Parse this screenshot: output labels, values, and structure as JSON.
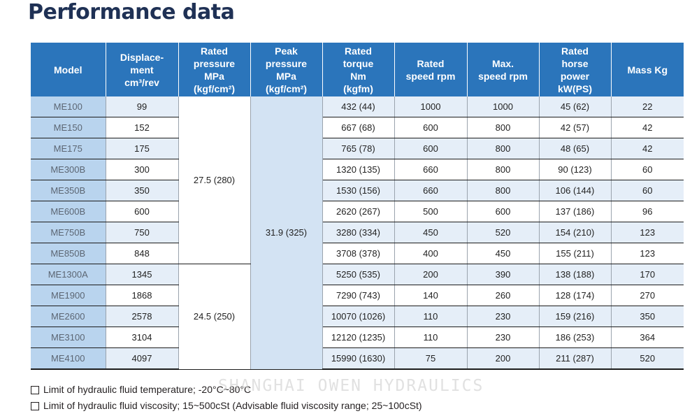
{
  "title": "Performance data",
  "headers": {
    "model": "Model",
    "displacement": [
      "Displace-",
      "ment",
      "cm³/rev"
    ],
    "rated_pressure": [
      "Rated",
      "pressure",
      "MPa",
      "(kgf/cm²)"
    ],
    "peak_pressure": [
      "Peak",
      "pressure",
      "MPa",
      "(kgf/cm²)"
    ],
    "rated_torque": [
      "Rated",
      "torque",
      "Nm",
      "(kgfm)"
    ],
    "rated_speed": [
      "Rated",
      "speed rpm"
    ],
    "max_speed": [
      "Max.",
      "speed rpm"
    ],
    "rated_power": [
      "Rated",
      "horse",
      "power",
      "kW(PS)"
    ],
    "mass": "Mass Kg"
  },
  "merged": {
    "rated_pressure_group1": "27.5 (280)",
    "rated_pressure_group2": "24.5 (250)",
    "peak_pressure_all": "31.9 (325)"
  },
  "rows": [
    {
      "model": "ME100",
      "displacement": "99",
      "torque": "432 (44)",
      "rated_speed": "1000",
      "max_speed": "1000",
      "power": "45 (62)",
      "mass": "22"
    },
    {
      "model": "ME150",
      "displacement": "152",
      "torque": "667 (68)",
      "rated_speed": "600",
      "max_speed": "800",
      "power": "42 (57)",
      "mass": "42"
    },
    {
      "model": "ME175",
      "displacement": "175",
      "torque": "765 (78)",
      "rated_speed": "600",
      "max_speed": "800",
      "power": "48 (65)",
      "mass": "42"
    },
    {
      "model": "ME300B",
      "displacement": "300",
      "torque": "1320 (135)",
      "rated_speed": "660",
      "max_speed": "800",
      "power": "90 (123)",
      "mass": "60"
    },
    {
      "model": "ME350B",
      "displacement": "350",
      "torque": "1530 (156)",
      "rated_speed": "660",
      "max_speed": "800",
      "power": "106 (144)",
      "mass": "60"
    },
    {
      "model": "ME600B",
      "displacement": "600",
      "torque": "2620 (267)",
      "rated_speed": "500",
      "max_speed": "600",
      "power": "137 (186)",
      "mass": "96"
    },
    {
      "model": "ME750B",
      "displacement": "750",
      "torque": "3280 (334)",
      "rated_speed": "450",
      "max_speed": "520",
      "power": "154 (210)",
      "mass": "123"
    },
    {
      "model": "ME850B",
      "displacement": "848",
      "torque": "3708 (378)",
      "rated_speed": "400",
      "max_speed": "450",
      "power": "155 (211)",
      "mass": "123"
    },
    {
      "model": "ME1300A",
      "displacement": "1345",
      "torque": "5250 (535)",
      "rated_speed": "200",
      "max_speed": "390",
      "power": "138 (188)",
      "mass": "170"
    },
    {
      "model": "ME1900",
      "displacement": "1868",
      "torque": "7290 (743)",
      "rated_speed": "140",
      "max_speed": "260",
      "power": "128 (174)",
      "mass": "270"
    },
    {
      "model": "ME2600",
      "displacement": "2578",
      "torque": "10070 (1026)",
      "rated_speed": "110",
      "max_speed": "230",
      "power": "159 (216)",
      "mass": "350"
    },
    {
      "model": "ME3100",
      "displacement": "3104",
      "torque": "12120 (1235)",
      "rated_speed": "110",
      "max_speed": "230",
      "power": "186 (253)",
      "mass": "364"
    },
    {
      "model": "ME4100",
      "displacement": "4097",
      "torque": "15990 (1630)",
      "rated_speed": "75",
      "max_speed": "200",
      "power": "211 (287)",
      "mass": "520"
    }
  ],
  "notes": [
    "Limit of hydraulic fluid temperature; -20°C~80°C",
    "Limit of hydraulic fluid viscosity; 15~500cSt (Advisable fluid viscosity range; 25~100cSt)"
  ],
  "watermark": "SHANGHAI OWEN HYDRAULICS"
}
